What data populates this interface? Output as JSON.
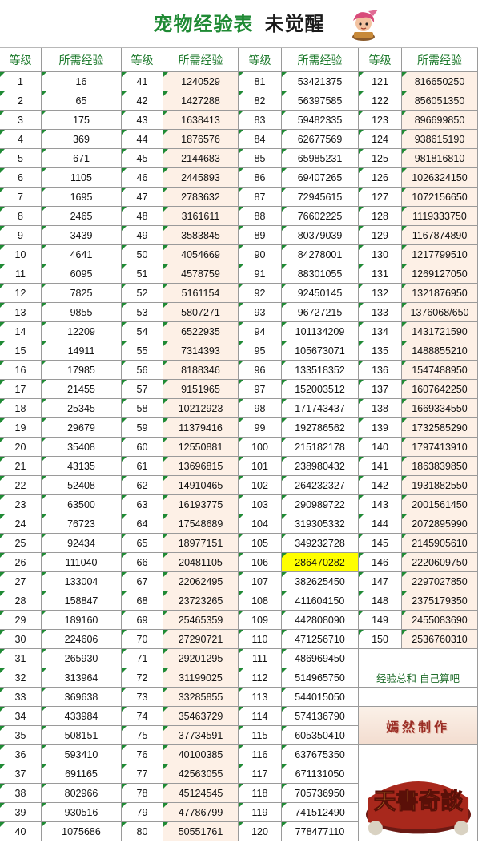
{
  "title": {
    "main": "宠物经验表",
    "sub": "未觉醒"
  },
  "headers": [
    "等级",
    "所需经验"
  ],
  "note": "经验总和 自己算吧",
  "maker": "嫣然制作",
  "logo_text": "天書奇談",
  "highlight_color": "#ffff00",
  "levels": [
    {
      "level": "1",
      "exp": "16"
    },
    {
      "level": "2",
      "exp": "65"
    },
    {
      "level": "3",
      "exp": "175"
    },
    {
      "level": "4",
      "exp": "369"
    },
    {
      "level": "5",
      "exp": "671"
    },
    {
      "level": "6",
      "exp": "1105"
    },
    {
      "level": "7",
      "exp": "1695"
    },
    {
      "level": "8",
      "exp": "2465"
    },
    {
      "level": "9",
      "exp": "3439"
    },
    {
      "level": "10",
      "exp": "4641"
    },
    {
      "level": "11",
      "exp": "6095"
    },
    {
      "level": "12",
      "exp": "7825"
    },
    {
      "level": "13",
      "exp": "9855"
    },
    {
      "level": "14",
      "exp": "12209"
    },
    {
      "level": "15",
      "exp": "14911"
    },
    {
      "level": "16",
      "exp": "17985"
    },
    {
      "level": "17",
      "exp": "21455"
    },
    {
      "level": "18",
      "exp": "25345"
    },
    {
      "level": "19",
      "exp": "29679"
    },
    {
      "level": "20",
      "exp": "35408"
    },
    {
      "level": "21",
      "exp": "43135"
    },
    {
      "level": "22",
      "exp": "52408"
    },
    {
      "level": "23",
      "exp": "63500"
    },
    {
      "level": "24",
      "exp": "76723"
    },
    {
      "level": "25",
      "exp": "92434"
    },
    {
      "level": "26",
      "exp": "111040"
    },
    {
      "level": "27",
      "exp": "133004"
    },
    {
      "level": "28",
      "exp": "158847"
    },
    {
      "level": "29",
      "exp": "189160"
    },
    {
      "level": "30",
      "exp": "224606"
    },
    {
      "level": "31",
      "exp": "265930"
    },
    {
      "level": "32",
      "exp": "313964"
    },
    {
      "level": "33",
      "exp": "369638"
    },
    {
      "level": "34",
      "exp": "433984"
    },
    {
      "level": "35",
      "exp": "508151"
    },
    {
      "level": "36",
      "exp": "593410"
    },
    {
      "level": "37",
      "exp": "691165"
    },
    {
      "level": "38",
      "exp": "802966"
    },
    {
      "level": "39",
      "exp": "930516"
    },
    {
      "level": "40",
      "exp": "1075686"
    },
    {
      "level": "41",
      "exp": "1240529"
    },
    {
      "level": "42",
      "exp": "1427288"
    },
    {
      "level": "43",
      "exp": "1638413"
    },
    {
      "level": "44",
      "exp": "1876576"
    },
    {
      "level": "45",
      "exp": "2144683"
    },
    {
      "level": "46",
      "exp": "2445893"
    },
    {
      "level": "47",
      "exp": "2783632"
    },
    {
      "level": "48",
      "exp": "3161611"
    },
    {
      "level": "49",
      "exp": "3583845"
    },
    {
      "level": "50",
      "exp": "4054669"
    },
    {
      "level": "51",
      "exp": "4578759"
    },
    {
      "level": "52",
      "exp": "5161154"
    },
    {
      "level": "53",
      "exp": "5807271"
    },
    {
      "level": "54",
      "exp": "6522935"
    },
    {
      "level": "55",
      "exp": "7314393"
    },
    {
      "level": "56",
      "exp": "8188346"
    },
    {
      "level": "57",
      "exp": "9151965"
    },
    {
      "level": "58",
      "exp": "10212923"
    },
    {
      "level": "59",
      "exp": "11379416"
    },
    {
      "level": "60",
      "exp": "12550881"
    },
    {
      "level": "61",
      "exp": "13696815"
    },
    {
      "level": "62",
      "exp": "14910465"
    },
    {
      "level": "63",
      "exp": "16193775"
    },
    {
      "level": "64",
      "exp": "17548689"
    },
    {
      "level": "65",
      "exp": "18977151"
    },
    {
      "level": "66",
      "exp": "20481105"
    },
    {
      "level": "67",
      "exp": "22062495"
    },
    {
      "level": "68",
      "exp": "23723265"
    },
    {
      "level": "69",
      "exp": "25465359"
    },
    {
      "level": "70",
      "exp": "27290721"
    },
    {
      "level": "71",
      "exp": "29201295"
    },
    {
      "level": "72",
      "exp": "31199025"
    },
    {
      "level": "73",
      "exp": "33285855"
    },
    {
      "level": "74",
      "exp": "35463729"
    },
    {
      "level": "75",
      "exp": "37734591"
    },
    {
      "level": "76",
      "exp": "40100385"
    },
    {
      "level": "77",
      "exp": "42563055"
    },
    {
      "level": "78",
      "exp": "45124545"
    },
    {
      "level": "79",
      "exp": "47786799"
    },
    {
      "level": "80",
      "exp": "50551761"
    },
    {
      "level": "81",
      "exp": "53421375"
    },
    {
      "level": "82",
      "exp": "56397585"
    },
    {
      "level": "83",
      "exp": "59482335"
    },
    {
      "level": "84",
      "exp": "62677569"
    },
    {
      "level": "85",
      "exp": "65985231"
    },
    {
      "level": "86",
      "exp": "69407265"
    },
    {
      "level": "87",
      "exp": "72945615"
    },
    {
      "level": "88",
      "exp": "76602225"
    },
    {
      "level": "89",
      "exp": "80379039"
    },
    {
      "level": "90",
      "exp": "84278001"
    },
    {
      "level": "91",
      "exp": "88301055"
    },
    {
      "level": "92",
      "exp": "92450145"
    },
    {
      "level": "93",
      "exp": "96727215"
    },
    {
      "level": "94",
      "exp": "101134209"
    },
    {
      "level": "95",
      "exp": "105673071"
    },
    {
      "level": "96",
      "exp": "133518352"
    },
    {
      "level": "97",
      "exp": "152003512"
    },
    {
      "level": "98",
      "exp": "171743437"
    },
    {
      "level": "99",
      "exp": "192786562"
    },
    {
      "level": "100",
      "exp": "215182178"
    },
    {
      "level": "101",
      "exp": "238980432"
    },
    {
      "level": "102",
      "exp": "264232327"
    },
    {
      "level": "103",
      "exp": "290989722"
    },
    {
      "level": "104",
      "exp": "319305332"
    },
    {
      "level": "105",
      "exp": "349232728"
    },
    {
      "level": "106",
      "exp": "286470282",
      "highlight": true
    },
    {
      "level": "107",
      "exp": "382625450"
    },
    {
      "level": "108",
      "exp": "411604150"
    },
    {
      "level": "109",
      "exp": "442808090"
    },
    {
      "level": "110",
      "exp": "471256710"
    },
    {
      "level": "111",
      "exp": "486969450"
    },
    {
      "level": "112",
      "exp": "514965750"
    },
    {
      "level": "113",
      "exp": "544015050"
    },
    {
      "level": "114",
      "exp": "574136790"
    },
    {
      "level": "115",
      "exp": "605350410"
    },
    {
      "level": "116",
      "exp": "637675350"
    },
    {
      "level": "117",
      "exp": "671131050"
    },
    {
      "level": "118",
      "exp": "705736950"
    },
    {
      "level": "119",
      "exp": "741512490"
    },
    {
      "level": "120",
      "exp": "778477110"
    },
    {
      "level": "121",
      "exp": "816650250"
    },
    {
      "level": "122",
      "exp": "856051350"
    },
    {
      "level": "123",
      "exp": "896699850"
    },
    {
      "level": "124",
      "exp": "938615190"
    },
    {
      "level": "125",
      "exp": "981816810"
    },
    {
      "level": "126",
      "exp": "1026324150"
    },
    {
      "level": "127",
      "exp": "1072156650"
    },
    {
      "level": "128",
      "exp": "1119333750"
    },
    {
      "level": "129",
      "exp": "1167874890"
    },
    {
      "level": "130",
      "exp": "1217799510"
    },
    {
      "level": "131",
      "exp": "1269127050"
    },
    {
      "level": "132",
      "exp": "1321876950"
    },
    {
      "level": "133",
      "exp": "1376068/650"
    },
    {
      "level": "134",
      "exp": "1431721590"
    },
    {
      "level": "135",
      "exp": "1488855210"
    },
    {
      "level": "136",
      "exp": "1547488950"
    },
    {
      "level": "137",
      "exp": "1607642250"
    },
    {
      "level": "138",
      "exp": "1669334550"
    },
    {
      "level": "139",
      "exp": "1732585290"
    },
    {
      "level": "140",
      "exp": "1797413910"
    },
    {
      "level": "141",
      "exp": "1863839850"
    },
    {
      "level": "142",
      "exp": "1931882550"
    },
    {
      "level": "143",
      "exp": "2001561450"
    },
    {
      "level": "144",
      "exp": "2072895990"
    },
    {
      "level": "145",
      "exp": "2145905610"
    },
    {
      "level": "146",
      "exp": "2220609750"
    },
    {
      "level": "147",
      "exp": "2297027850"
    },
    {
      "level": "148",
      "exp": "2375179350"
    },
    {
      "level": "149",
      "exp": "2455083690"
    },
    {
      "level": "150",
      "exp": "2536760310"
    }
  ]
}
